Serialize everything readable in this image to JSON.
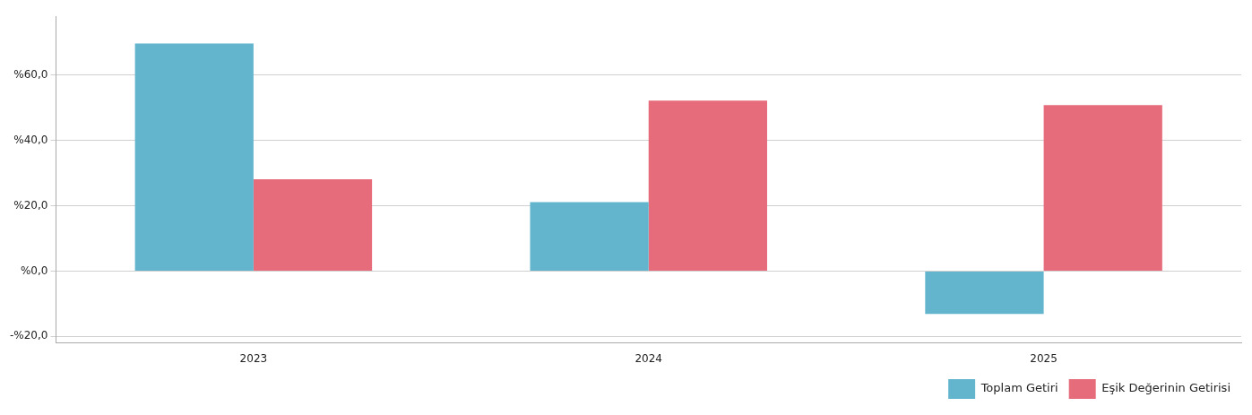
{
  "chart_data": {
    "type": "bar",
    "categories": [
      "2023",
      "2024",
      "2025"
    ],
    "series": [
      {
        "name": "Toplam Getiri",
        "color": "#62b5cd",
        "values": [
          69.7,
          21.1,
          -13.1
        ]
      },
      {
        "name": "Eşik Değerinin Getirisi",
        "color": "#e66b7b",
        "values": [
          28.1,
          52.2,
          50.8
        ]
      }
    ],
    "ylim": [
      -22,
      78
    ],
    "yticks": [
      {
        "value": -20,
        "label": "-%20,0"
      },
      {
        "value": 0,
        "label": "%0,0"
      },
      {
        "value": 20,
        "label": "%20,0"
      },
      {
        "value": 40,
        "label": "%40,0"
      },
      {
        "value": 60,
        "label": "%60,0"
      }
    ],
    "grid": "y",
    "legend": "bottom right"
  }
}
